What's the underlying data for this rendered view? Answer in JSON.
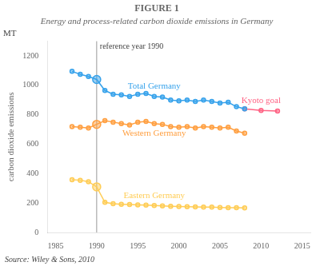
{
  "chart_data": {
    "type": "line",
    "title": "FIGURE 1",
    "subtitle": "Energy and process-related carbon dioxide emissions in Germany",
    "source": "Source: Wiley & Sons, 2010",
    "ylabel": "carbon dioxide emissions",
    "y_unit": "MT",
    "xlim": [
      1984,
      2016
    ],
    "xticks": [
      1985,
      1990,
      1995,
      2000,
      2005,
      2010,
      2015
    ],
    "ylim": [
      0,
      1300
    ],
    "yticks": [
      0,
      200,
      400,
      600,
      800,
      1000,
      1200
    ],
    "grid": false,
    "marker": "circle",
    "annotations": [
      {
        "text": "reference year 1990",
        "x": 1990
      }
    ],
    "series": [
      {
        "name": "Total Germany",
        "x": [
          1987,
          1988,
          1989,
          1990,
          1991,
          1992,
          1993,
          1994,
          1995,
          1996,
          1997,
          1998,
          1999,
          2000,
          2001,
          2002,
          2003,
          2004,
          2005,
          2006,
          2007,
          2008
        ],
        "values": [
          1095,
          1075,
          1060,
          1040,
          965,
          940,
          935,
          925,
          940,
          945,
          925,
          920,
          900,
          895,
          900,
          890,
          900,
          890,
          880,
          885,
          855,
          840
        ]
      },
      {
        "name": "Kyoto goal",
        "x": [
          2008,
          2010,
          2012
        ],
        "values": [
          840,
          830,
          825
        ]
      },
      {
        "name": "Western Germany",
        "x": [
          1987,
          1988,
          1989,
          1990,
          1991,
          1992,
          1993,
          1994,
          1995,
          1996,
          1997,
          1998,
          1999,
          2000,
          2001,
          2002,
          2003,
          2004,
          2005,
          2006,
          2007,
          2008
        ],
        "values": [
          720,
          715,
          710,
          735,
          760,
          750,
          740,
          730,
          750,
          755,
          740,
          735,
          720,
          715,
          720,
          710,
          720,
          715,
          710,
          715,
          690,
          675
        ]
      },
      {
        "name": "Eastern Germany",
        "x": [
          1987,
          1988,
          1989,
          1990,
          1991,
          1992,
          1993,
          1994,
          1995,
          1996,
          1997,
          1998,
          1999,
          2000,
          2001,
          2002,
          2003,
          2004,
          2005,
          2006,
          2007,
          2008
        ],
        "values": [
          358,
          355,
          345,
          310,
          205,
          195,
          192,
          190,
          188,
          186,
          183,
          180,
          178,
          176,
          175,
          174,
          173,
          172,
          170,
          169,
          168,
          167
        ]
      }
    ]
  }
}
